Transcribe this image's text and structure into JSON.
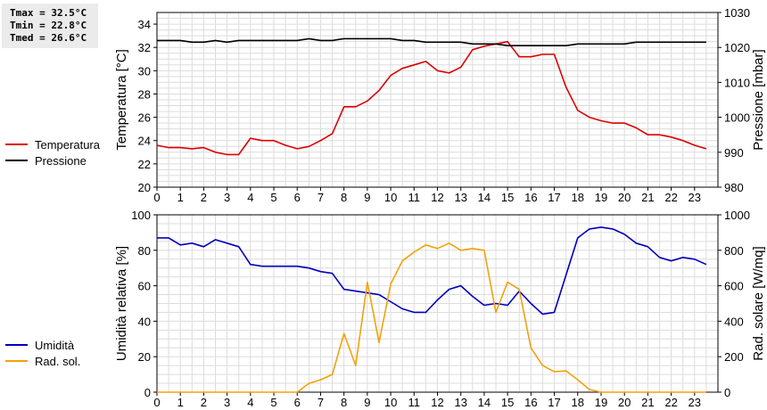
{
  "stats": {
    "tmax": "Tmax = 32.5°C",
    "tmin": "Tmin = 22.8°C",
    "tmed": "Tmed = 26.6°C"
  },
  "chart_data": [
    {
      "type": "line",
      "xlabel": "",
      "x": [
        0,
        0.5,
        1,
        1.5,
        2,
        2.5,
        3,
        3.5,
        4,
        4.5,
        5,
        5.5,
        6,
        6.5,
        7,
        7.5,
        8,
        8.5,
        9,
        9.5,
        10,
        10.5,
        11,
        11.5,
        12,
        12.5,
        13,
        13.5,
        14,
        14.5,
        15,
        15.5,
        16,
        16.5,
        17,
        17.5,
        18,
        18.5,
        19,
        19.5,
        20,
        20.5,
        21,
        21.5,
        22,
        22.5,
        23,
        23.5
      ],
      "xlim": [
        0,
        24
      ],
      "xticks": [
        "0",
        "1",
        "2",
        "3",
        "4",
        "5",
        "6",
        "7",
        "8",
        "9",
        "10",
        "11",
        "12",
        "13",
        "14",
        "15",
        "16",
        "17",
        "18",
        "19",
        "20",
        "21",
        "22",
        "23"
      ],
      "grid": true,
      "legend_placement": "left",
      "series": [
        {
          "name": "Temperatura",
          "axis": "left",
          "color": "#dd0000",
          "values": [
            23.6,
            23.4,
            23.4,
            23.3,
            23.4,
            23.0,
            22.8,
            22.8,
            24.2,
            24.0,
            24.0,
            23.6,
            23.3,
            23.5,
            24.0,
            24.6,
            26.9,
            26.9,
            27.4,
            28.3,
            29.6,
            30.2,
            30.5,
            30.8,
            30.0,
            29.8,
            30.3,
            31.8,
            32.1,
            32.3,
            32.5,
            31.2,
            31.2,
            31.4,
            31.4,
            28.6,
            26.6,
            26.0,
            25.7,
            25.5,
            25.5,
            25.1,
            24.5,
            24.5,
            24.3,
            24.0,
            23.6,
            23.3
          ]
        },
        {
          "name": "Pressione",
          "axis": "right",
          "color": "#000000",
          "values": [
            1022,
            1022,
            1022,
            1021.5,
            1021.5,
            1022,
            1021.5,
            1022,
            1022,
            1022,
            1022,
            1022,
            1022,
            1022.5,
            1022,
            1022,
            1022.5,
            1022.5,
            1022.5,
            1022.5,
            1022.5,
            1022,
            1022,
            1021.5,
            1021.5,
            1021.5,
            1021.5,
            1021,
            1021,
            1021,
            1020.5,
            1020.5,
            1020.5,
            1020.5,
            1020.5,
            1020.5,
            1021,
            1021,
            1021,
            1021,
            1021,
            1021.5,
            1021.5,
            1021.5,
            1021.5,
            1021.5,
            1021.5,
            1021.5
          ]
        }
      ],
      "y_left": {
        "label": "Temperatura [°C]",
        "lim": [
          20,
          35
        ],
        "ticks": [
          20,
          22,
          24,
          26,
          28,
          30,
          32,
          34
        ]
      },
      "y_right": {
        "label": "Pressione [mbar]",
        "lim": [
          980,
          1030
        ],
        "ticks": [
          980,
          990,
          1000,
          1010,
          1020,
          1030
        ]
      }
    },
    {
      "type": "line",
      "xlabel": "",
      "x": [
        0,
        0.5,
        1,
        1.5,
        2,
        2.5,
        3,
        3.5,
        4,
        4.5,
        5,
        5.5,
        6,
        6.5,
        7,
        7.5,
        8,
        8.5,
        9,
        9.5,
        10,
        10.5,
        11,
        11.5,
        12,
        12.5,
        13,
        13.5,
        14,
        14.5,
        15,
        15.5,
        16,
        16.5,
        17,
        17.5,
        18,
        18.5,
        19,
        19.5,
        20,
        20.5,
        21,
        21.5,
        22,
        22.5,
        23,
        23.5
      ],
      "xlim": [
        0,
        24
      ],
      "xticks": [
        "0",
        "1",
        "2",
        "3",
        "4",
        "5",
        "6",
        "7",
        "8",
        "9",
        "10",
        "11",
        "12",
        "13",
        "14",
        "15",
        "16",
        "17",
        "18",
        "19",
        "20",
        "21",
        "22",
        "23"
      ],
      "grid": true,
      "legend_placement": "left",
      "series": [
        {
          "name": "Umidità",
          "axis": "left",
          "color": "#0000bb",
          "values": [
            87,
            87,
            83,
            84,
            82,
            86,
            84,
            82,
            72,
            71,
            71,
            71,
            71,
            70,
            68,
            67,
            58,
            57,
            56,
            55,
            51,
            47,
            45,
            45,
            52,
            58,
            60,
            54,
            49,
            50,
            49,
            57,
            50,
            44,
            45,
            66,
            87,
            92,
            93,
            92,
            89,
            84,
            82,
            76,
            74,
            76,
            75,
            72
          ]
        },
        {
          "name": "Rad. sol.",
          "axis": "right",
          "color": "#f2a10c",
          "values": [
            0,
            0,
            0,
            0,
            0,
            0,
            0,
            0,
            0,
            0,
            0,
            0,
            0,
            50,
            70,
            100,
            330,
            150,
            620,
            280,
            610,
            740,
            790,
            830,
            810,
            840,
            800,
            810,
            800,
            450,
            620,
            580,
            250,
            150,
            115,
            120,
            70,
            15,
            0,
            0,
            0,
            0,
            0,
            0,
            0,
            0,
            0,
            0
          ]
        }
      ],
      "y_left": {
        "label": "Umidità relativa [%]",
        "lim": [
          0,
          100
        ],
        "ticks": [
          0,
          20,
          40,
          60,
          80,
          100
        ]
      },
      "y_right": {
        "label": "Rad. solare [W/mq]",
        "lim": [
          0,
          1000
        ],
        "ticks": [
          0,
          200,
          400,
          600,
          800,
          1000
        ]
      }
    }
  ]
}
